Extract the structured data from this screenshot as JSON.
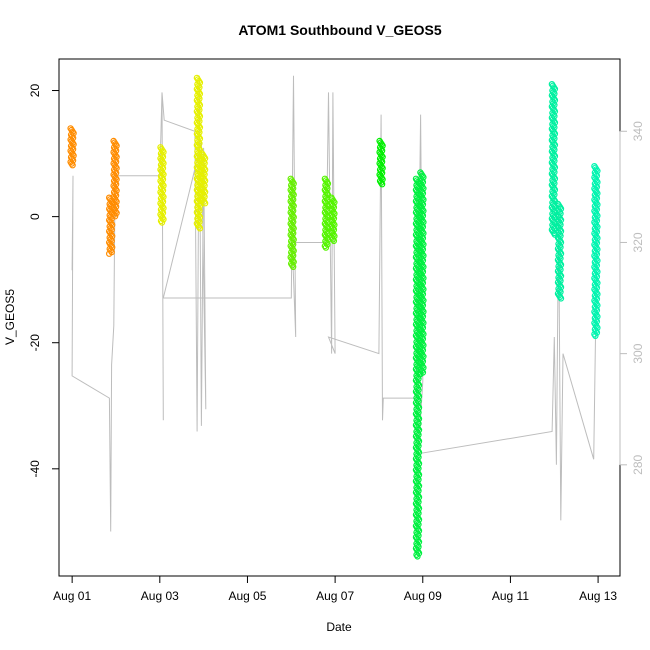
{
  "chart_data": {
    "type": "scatter",
    "title": "ATOM1 Southbound V_GEOS5",
    "xlabel": "Date",
    "ylabel": "V_GEOS5",
    "x_ticks": [
      "Aug 01",
      "Aug 03",
      "Aug 05",
      "Aug 07",
      "Aug 09",
      "Aug 11",
      "Aug 13"
    ],
    "x_tick_days": [
      1,
      3,
      5,
      7,
      9,
      11,
      13
    ],
    "xlim": [
      0.7,
      13.5
    ],
    "ylim": [
      -57,
      25
    ],
    "y_ticks": [
      20,
      0,
      -20,
      -40
    ],
    "y_tick_labels": [
      "20",
      "0",
      "-20",
      "-40"
    ],
    "y2_ticks": [
      280,
      300,
      320,
      340
    ],
    "y2_tick_labels": [
      "280",
      "300",
      "320",
      "340"
    ],
    "y2lim": [
      260,
      353
    ],
    "grid": false,
    "series": [
      {
        "color": "#ff8c00",
        "x": 1.0,
        "ymin": 8,
        "ymax": 14
      },
      {
        "color": "#ff8c00",
        "x": 1.88,
        "ymin": -6,
        "ymax": 3
      },
      {
        "color": "#ff8c00",
        "x": 1.98,
        "ymin": 0,
        "ymax": 12
      },
      {
        "color": "#e6f000",
        "x": 3.05,
        "ymin": -1,
        "ymax": 11
      },
      {
        "color": "#e6f000",
        "x": 3.88,
        "ymin": -2,
        "ymax": 22
      },
      {
        "color": "#e6f000",
        "x": 4.0,
        "ymin": 2,
        "ymax": 10
      },
      {
        "color": "#66f000",
        "x": 6.02,
        "ymin": -8,
        "ymax": 6
      },
      {
        "color": "#55f500",
        "x": 6.8,
        "ymin": -5,
        "ymax": 6
      },
      {
        "color": "#55f500",
        "x": 6.95,
        "ymin": -4,
        "ymax": 3
      },
      {
        "color": "#00f000",
        "x": 8.05,
        "ymin": 5,
        "ymax": 12
      },
      {
        "color": "#00f040",
        "x": 8.88,
        "ymin": -54,
        "ymax": 6
      },
      {
        "color": "#00f040",
        "x": 8.98,
        "ymin": -25,
        "ymax": 7
      },
      {
        "color": "#00f0a0",
        "x": 11.98,
        "ymin": -3,
        "ymax": 21
      },
      {
        "color": "#00f0a0",
        "x": 12.12,
        "ymin": -13,
        "ymax": 2
      },
      {
        "color": "#00f5b0",
        "x": 12.95,
        "ymin": -19,
        "ymax": 8
      }
    ],
    "secondary_trace": {
      "color": "#bdbdbd",
      "points": [
        [
          1.0,
          315
        ],
        [
          1.02,
          332
        ],
        [
          1.0,
          296
        ],
        [
          1.85,
          292
        ],
        [
          1.88,
          268
        ],
        [
          1.9,
          298
        ],
        [
          1.95,
          305
        ],
        [
          1.98,
          332
        ],
        [
          2.05,
          332
        ],
        [
          3.0,
          332
        ],
        [
          3.05,
          347
        ],
        [
          3.08,
          288
        ],
        [
          3.05,
          347
        ],
        [
          3.1,
          342
        ],
        [
          3.8,
          340
        ],
        [
          3.85,
          286
        ],
        [
          3.9,
          350
        ],
        [
          3.95,
          287
        ],
        [
          4.0,
          337
        ],
        [
          4.05,
          290
        ],
        [
          3.95,
          338
        ],
        [
          3.08,
          310
        ],
        [
          6.0,
          310
        ],
        [
          6.05,
          350
        ],
        [
          6.1,
          303
        ],
        [
          6.02,
          320
        ],
        [
          6.8,
          320
        ],
        [
          6.85,
          347
        ],
        [
          6.92,
          300
        ],
        [
          6.95,
          347
        ],
        [
          7.0,
          300
        ],
        [
          6.85,
          303
        ],
        [
          8.0,
          300
        ],
        [
          8.05,
          343
        ],
        [
          8.08,
          288
        ],
        [
          8.1,
          292
        ],
        [
          8.85,
          292
        ],
        [
          8.9,
          310
        ],
        [
          8.95,
          343
        ],
        [
          9.0,
          295
        ],
        [
          8.9,
          282
        ],
        [
          11.95,
          286
        ],
        [
          12.0,
          303
        ],
        [
          12.05,
          280
        ],
        [
          12.1,
          325
        ],
        [
          12.15,
          270
        ],
        [
          12.2,
          300
        ],
        [
          12.9,
          281
        ],
        [
          12.95,
          308
        ],
        [
          13.0,
          330
        ]
      ]
    }
  }
}
